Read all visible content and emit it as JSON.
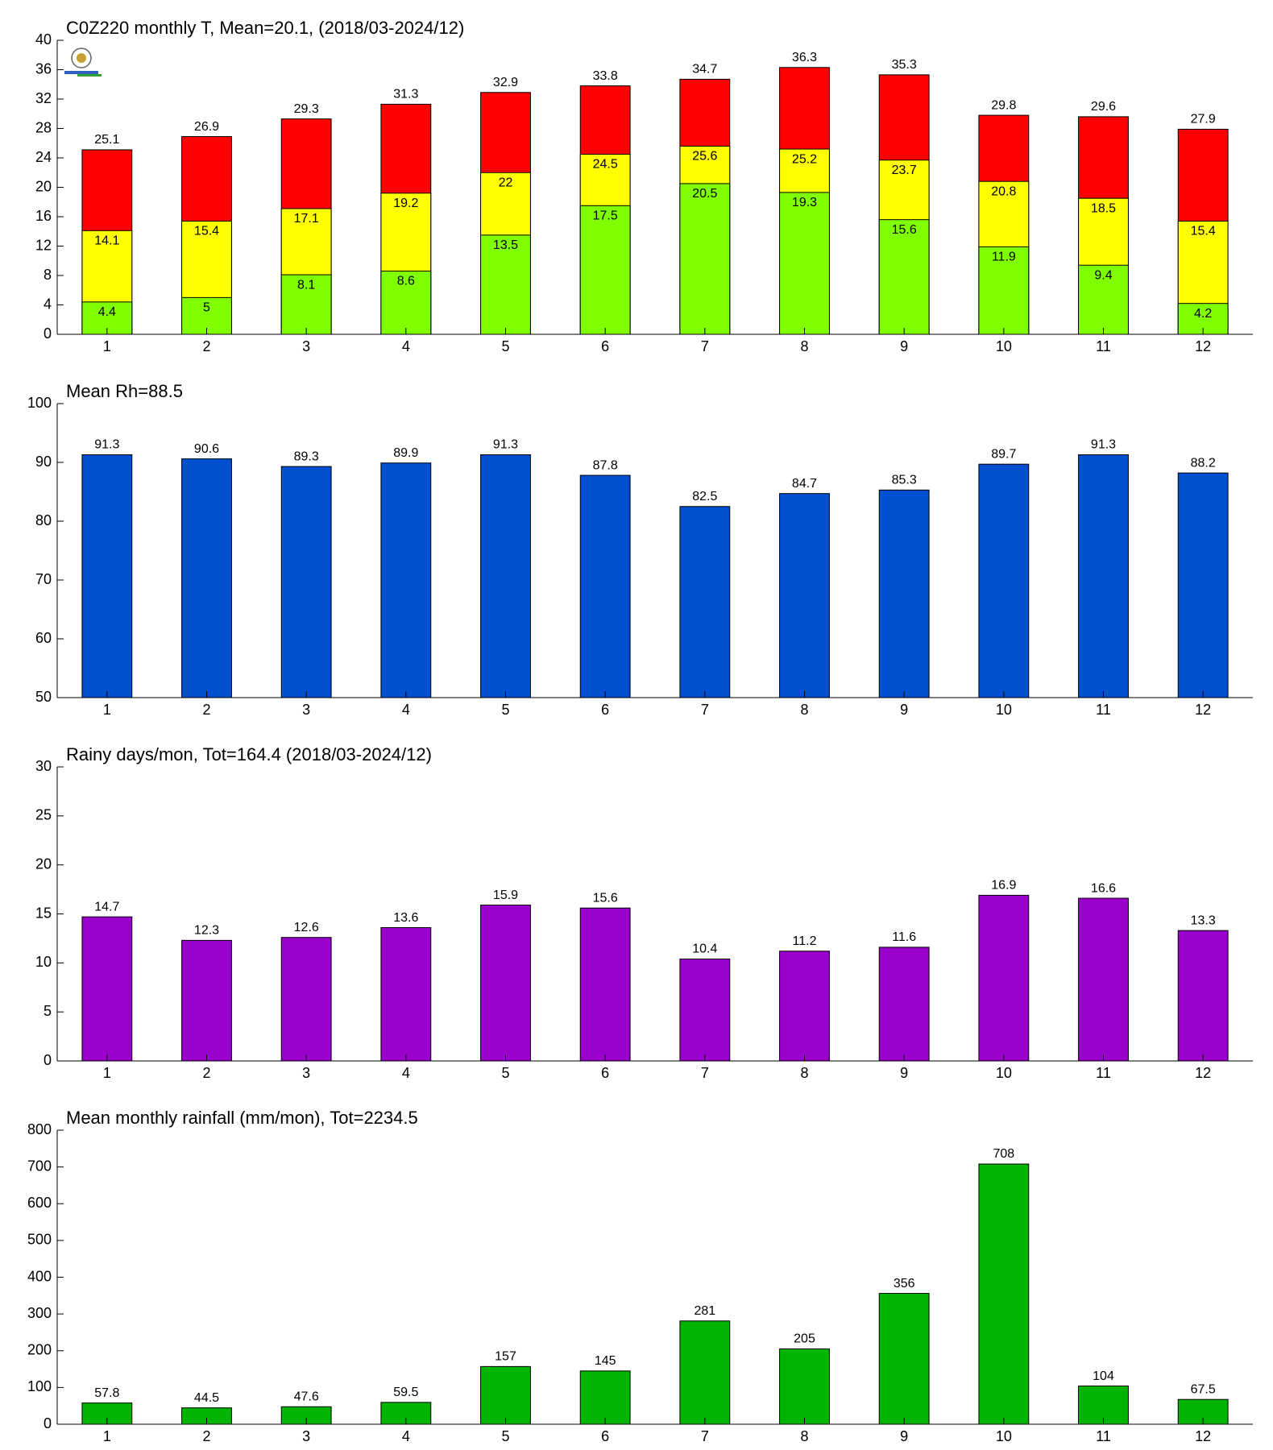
{
  "chart_data": [
    {
      "type": "bar",
      "title": "C0Z220 monthly T, Mean=20.1, (2018/03-2024/12)",
      "categories": [
        "1",
        "2",
        "3",
        "4",
        "5",
        "6",
        "7",
        "8",
        "9",
        "10",
        "11",
        "12"
      ],
      "series": [
        {
          "color": "#ff0000",
          "values": [
            25.1,
            26.9,
            29.3,
            31.3,
            32.9,
            33.8,
            34.7,
            36.3,
            35.3,
            29.8,
            29.6,
            27.9
          ]
        },
        {
          "color": "#ffff00",
          "values": [
            14.1,
            15.4,
            17.1,
            19.2,
            22,
            24.5,
            25.6,
            25.2,
            23.7,
            20.8,
            18.5,
            15.4
          ]
        },
        {
          "color": "#80ff00",
          "values": [
            4.4,
            5,
            8.1,
            8.6,
            13.5,
            17.5,
            20.5,
            19.3,
            15.6,
            11.9,
            9.4,
            4.2
          ]
        }
      ],
      "ylim": [
        0,
        40
      ],
      "yticks": [
        0,
        4,
        8,
        12,
        16,
        20,
        24,
        28,
        32,
        36,
        40
      ]
    },
    {
      "type": "bar",
      "title": "Mean Rh=88.5",
      "categories": [
        "1",
        "2",
        "3",
        "4",
        "5",
        "6",
        "7",
        "8",
        "9",
        "10",
        "11",
        "12"
      ],
      "series": [
        {
          "color": "#0050d0",
          "values": [
            91.3,
            90.6,
            89.3,
            89.9,
            91.3,
            87.8,
            82.5,
            84.7,
            85.3,
            89.7,
            91.3,
            88.2
          ]
        }
      ],
      "ylim": [
        50,
        100
      ],
      "yticks": [
        50,
        60,
        70,
        80,
        90,
        100
      ]
    },
    {
      "type": "bar",
      "title": "Rainy days/mon, Tot=164.4 (2018/03-2024/12)",
      "categories": [
        "1",
        "2",
        "3",
        "4",
        "5",
        "6",
        "7",
        "8",
        "9",
        "10",
        "11",
        "12"
      ],
      "series": [
        {
          "color": "#9900cc",
          "values": [
            14.7,
            12.3,
            12.6,
            13.6,
            15.9,
            15.6,
            10.4,
            11.2,
            11.6,
            16.9,
            16.6,
            13.3
          ]
        }
      ],
      "ylim": [
        0,
        30
      ],
      "yticks": [
        0,
        5,
        10,
        15,
        20,
        25,
        30
      ]
    },
    {
      "type": "bar",
      "title": "Mean monthly rainfall (mm/mon), Tot=2234.5",
      "categories": [
        "1",
        "2",
        "3",
        "4",
        "5",
        "6",
        "7",
        "8",
        "9",
        "10",
        "11",
        "12"
      ],
      "series": [
        {
          "color": "#00b400",
          "values": [
            57.8,
            44.5,
            47.6,
            59.5,
            157,
            145,
            281,
            205,
            356,
            708,
            104,
            67.5
          ]
        }
      ],
      "ylim": [
        0,
        800
      ],
      "yticks": [
        0,
        100,
        200,
        300,
        400,
        500,
        600,
        700,
        800
      ]
    }
  ]
}
